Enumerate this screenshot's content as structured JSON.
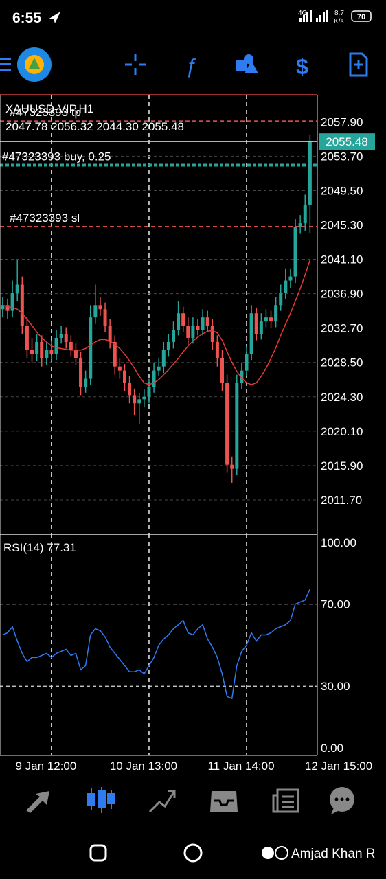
{
  "status_bar": {
    "time": "6:55",
    "network": "4G",
    "speed": "8.7",
    "speed_unit": "K/s",
    "battery": "70"
  },
  "chart_data": [
    {
      "type": "candlestick",
      "title": "XAUUSD-VIP,H1",
      "ohlc_text": "2047.78 2056.32 2044.30 2055.48",
      "up_color": "#26a69a",
      "down_color": "#ef5350",
      "open": [
        2035.0,
        2035.5,
        2034.8,
        2037.0,
        2038.0,
        2033.0,
        2030.0,
        2029.5,
        2031.0,
        2029.0,
        2030.0,
        2029.5,
        2031.5,
        2032.0,
        2031.0,
        2030.0,
        2029.0,
        2025.5,
        2026.5,
        2034.0,
        2035.5,
        2035.0,
        2033.0,
        2031.0,
        2028.0,
        2027.5,
        2026.0,
        2024.5,
        2023.5,
        2024.0,
        2024.3,
        2025.5,
        2027.5,
        2028.0,
        2030.0,
        2031.0,
        2032.5,
        2034.5,
        2033.0,
        2031.5,
        2033.0,
        2032.5,
        2034.0,
        2033.0,
        2031.0,
        2029.0,
        2026.0,
        2016.0,
        2015.5,
        2026.0,
        2027.5,
        2029.5,
        2034.5,
        2032.0,
        2033.5,
        2034.0,
        2033.5,
        2035.5,
        2037.0,
        2038.5,
        2039.0,
        2045.0,
        2045.5,
        2047.78
      ],
      "high": [
        2036.5,
        2036.3,
        2038.5,
        2041.0,
        2039.0,
        2034.0,
        2031.5,
        2032.0,
        2031.8,
        2031.0,
        2031.2,
        2032.5,
        2033.0,
        2032.8,
        2031.8,
        2030.8,
        2029.8,
        2027.5,
        2035.5,
        2038.0,
        2036.5,
        2035.8,
        2033.8,
        2031.8,
        2029.0,
        2028.3,
        2026.8,
        2025.3,
        2024.8,
        2025.2,
        2026.5,
        2028.5,
        2029.0,
        2031.0,
        2032.0,
        2033.5,
        2036.0,
        2035.3,
        2034.0,
        2034.0,
        2033.8,
        2035.0,
        2034.8,
        2033.8,
        2031.8,
        2030.0,
        2027.0,
        2017.0,
        2027.0,
        2028.5,
        2030.5,
        2035.5,
        2035.2,
        2034.5,
        2035.0,
        2034.8,
        2036.5,
        2038.0,
        2040.0,
        2040.0,
        2046.0,
        2046.5,
        2049.0,
        2056.32
      ],
      "low": [
        2034.0,
        2033.8,
        2034.0,
        2036.0,
        2032.0,
        2029.0,
        2028.5,
        2028.7,
        2028.0,
        2028.2,
        2028.6,
        2028.8,
        2030.8,
        2030.2,
        2029.2,
        2028.2,
        2024.5,
        2024.8,
        2025.8,
        2033.2,
        2034.2,
        2032.2,
        2030.2,
        2027.0,
        2026.5,
        2025.0,
        2023.5,
        2022.0,
        2021.0,
        2023.0,
        2023.5,
        2024.8,
        2026.8,
        2027.2,
        2029.2,
        2030.2,
        2031.8,
        2032.2,
        2030.6,
        2030.8,
        2031.8,
        2031.8,
        2032.2,
        2030.0,
        2028.0,
        2025.0,
        2015.0,
        2013.8,
        2014.8,
        2025.2,
        2026.8,
        2028.8,
        2031.2,
        2031.3,
        2032.8,
        2032.7,
        2032.8,
        2034.8,
        2036.2,
        2037.6,
        2038.2,
        2044.2,
        2044.6,
        2044.3
      ],
      "close": [
        2035.5,
        2034.8,
        2037.0,
        2038.0,
        2033.0,
        2030.0,
        2029.5,
        2031.0,
        2029.0,
        2030.0,
        2029.5,
        2031.5,
        2032.0,
        2031.0,
        2030.0,
        2029.0,
        2025.5,
        2026.5,
        2034.0,
        2035.5,
        2035.0,
        2033.0,
        2031.0,
        2028.0,
        2027.5,
        2026.0,
        2024.5,
        2023.5,
        2024.0,
        2024.3,
        2025.5,
        2027.5,
        2028.0,
        2030.0,
        2031.0,
        2032.5,
        2034.5,
        2033.0,
        2031.5,
        2033.0,
        2032.5,
        2034.0,
        2033.0,
        2031.0,
        2029.0,
        2026.0,
        2016.0,
        2015.5,
        2026.0,
        2027.5,
        2029.5,
        2034.5,
        2032.0,
        2033.5,
        2034.0,
        2033.5,
        2035.5,
        2037.0,
        2038.5,
        2039.0,
        2045.0,
        2045.5,
        2047.78,
        2055.48
      ],
      "ma": {
        "color": "#e53935",
        "values": [
          2035.5,
          2035.3,
          2035.2,
          2035.0,
          2034.5,
          2033.8,
          2033.0,
          2032.2,
          2031.5,
          2031.0,
          2030.5,
          2030.3,
          2030.2,
          2030.1,
          2030.0,
          2030.0,
          2030.0,
          2030.2,
          2030.6,
          2031.0,
          2031.3,
          2031.3,
          2031.1,
          2030.7,
          2030.2,
          2029.5,
          2028.7,
          2027.8,
          2026.8,
          2026.0,
          2025.8,
          2026.0,
          2026.4,
          2027.0,
          2027.6,
          2028.3,
          2029.0,
          2029.8,
          2030.5,
          2031.1,
          2031.6,
          2032.0,
          2032.3,
          2032.4,
          2032.1,
          2031.2,
          2029.8,
          2028.5,
          2027.4,
          2026.6,
          2026.0,
          2025.8,
          2026.0,
          2026.8,
          2027.8,
          2029.0,
          2030.3,
          2031.8,
          2033.2,
          2034.5,
          2036.0,
          2037.5,
          2039.2,
          2041.0
        ]
      },
      "last_price": 2055.48,
      "orders": [
        {
          "label": "#47323393 tp",
          "value": 2058.0,
          "color": "#ef5350"
        },
        {
          "label": "#47323393 buy, 0.25",
          "value": 2052.6,
          "color": "#26a69a"
        },
        {
          "label": "#47323393 sl",
          "value": 2045.1,
          "color": "#ef5350"
        }
      ],
      "xlim": [
        -0.55,
        64.5
      ],
      "xticks": [
        {
          "value": 10,
          "label": "9 Jan 12:00"
        },
        {
          "value": 30,
          "label": "10 Jan 13:00"
        },
        {
          "value": 50,
          "label": "11 Jan 14:00"
        },
        {
          "value": 70,
          "label": "12 Jan 15:00"
        }
      ],
      "ylim": [
        2007.5,
        2061.2
      ],
      "yticks": [
        {
          "value": 2057.9,
          "label": "2057.90"
        },
        {
          "value": 2053.7,
          "label": "2053.70"
        },
        {
          "value": 2049.5,
          "label": "2049.50"
        },
        {
          "value": 2045.3,
          "label": "2045.30"
        },
        {
          "value": 2041.1,
          "label": "2041.10"
        },
        {
          "value": 2036.9,
          "label": "2036.90"
        },
        {
          "value": 2032.7,
          "label": "2032.70"
        },
        {
          "value": 2028.5,
          "label": "2028.50"
        },
        {
          "value": 2024.3,
          "label": "2024.30"
        },
        {
          "value": 2020.1,
          "label": "2020.10"
        },
        {
          "value": 2015.9,
          "label": "2015.90"
        },
        {
          "value": 2011.7,
          "label": "2011.70"
        }
      ],
      "grid": true
    },
    {
      "type": "line",
      "title": "RSI(14) 77.31",
      "color": "#2f7bf0",
      "values": [
        55,
        56,
        59,
        52,
        46,
        42,
        44,
        44,
        45,
        46,
        44,
        46,
        47,
        48,
        45,
        46,
        38,
        40,
        55,
        58,
        57,
        54,
        49,
        46,
        43,
        40,
        37,
        37,
        38,
        36,
        40,
        44,
        50,
        53,
        55,
        58,
        60,
        62,
        56,
        55,
        58,
        60,
        53,
        49,
        44,
        36,
        25,
        24,
        40,
        47,
        50,
        56,
        52,
        55,
        55,
        56,
        58,
        59,
        60,
        62,
        70,
        71,
        72,
        77.31
      ],
      "xlim": [
        -0.55,
        64.5
      ],
      "ylim": [
        -3.7,
        104
      ],
      "yticks": [
        {
          "value": 100,
          "label": "100.00"
        },
        {
          "value": 70,
          "label": "70.00"
        },
        {
          "value": 30,
          "label": "30.00"
        },
        {
          "value": 0,
          "label": "0.00"
        }
      ],
      "grid": true
    }
  ],
  "watermark": "Amjad Khan R"
}
